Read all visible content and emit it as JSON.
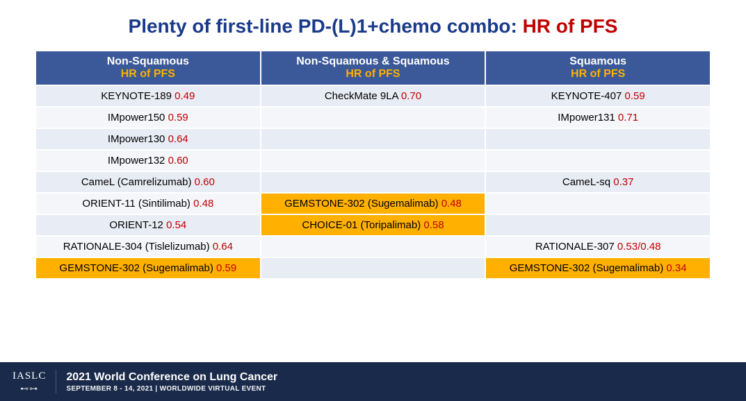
{
  "title": {
    "part1": "Plenty of first-line PD-(L)1+chemo combo: ",
    "part2": "HR of PFS",
    "fontsize": 28
  },
  "colors": {
    "header_bg": "#3b5998",
    "header_text": "#ffffff",
    "header_sub": "#ffb000",
    "row_bg_a": "#e8ecf4",
    "row_bg_b": "#f4f6fa",
    "highlight_bg": "#ffb000",
    "trial_text": "#000000",
    "hr_text": "#c00000",
    "title_main": "#1a3a8a",
    "title_accent": "#c00000",
    "footer_bg": "#1a2a4a",
    "border": "#ffffff"
  },
  "table": {
    "type": "table",
    "cell_fontsize": 15,
    "header_fontsize": 16,
    "columns": [
      {
        "title": "Non-Squamous",
        "sub": "HR of PFS"
      },
      {
        "title": "Non-Squamous & Squamous",
        "sub": "HR of PFS"
      },
      {
        "title": "Squamous",
        "sub": "HR of PFS"
      }
    ],
    "rows": [
      {
        "alt": false,
        "cells": [
          {
            "trial": "KEYNOTE-189",
            "hr": "0.49",
            "highlight": false
          },
          {
            "trial": "CheckMate 9LA",
            "hr": "0.70",
            "highlight": false
          },
          {
            "trial": "KEYNOTE-407",
            "hr": "0.59",
            "highlight": false
          }
        ]
      },
      {
        "alt": true,
        "cells": [
          {
            "trial": "IMpower150",
            "hr": "0.59",
            "highlight": false
          },
          {
            "trial": "",
            "hr": "",
            "highlight": false
          },
          {
            "trial": "IMpower131",
            "hr": "0.71",
            "highlight": false
          }
        ]
      },
      {
        "alt": false,
        "cells": [
          {
            "trial": "IMpower130",
            "hr": "0.64",
            "highlight": false
          },
          {
            "trial": "",
            "hr": "",
            "highlight": false
          },
          {
            "trial": "",
            "hr": "",
            "highlight": false
          }
        ]
      },
      {
        "alt": true,
        "cells": [
          {
            "trial": "IMpower132",
            "hr": "0.60",
            "highlight": false
          },
          {
            "trial": "",
            "hr": "",
            "highlight": false
          },
          {
            "trial": "",
            "hr": "",
            "highlight": false
          }
        ]
      },
      {
        "alt": false,
        "cells": [
          {
            "trial": "CameL (Camrelizumab)",
            "hr": "0.60",
            "highlight": false
          },
          {
            "trial": "",
            "hr": "",
            "highlight": false
          },
          {
            "trial": "CameL-sq",
            "hr": "0.37",
            "highlight": false
          }
        ]
      },
      {
        "alt": true,
        "cells": [
          {
            "trial": "ORIENT-11 (Sintilimab)",
            "hr": "0.48",
            "highlight": false
          },
          {
            "trial": "GEMSTONE-302 (Sugemalimab)",
            "hr": "0.48",
            "highlight": true
          },
          {
            "trial": "",
            "hr": "",
            "highlight": false
          }
        ]
      },
      {
        "alt": false,
        "cells": [
          {
            "trial": "ORIENT-12",
            "hr": "0.54",
            "highlight": false
          },
          {
            "trial": "CHOICE-01 (Toripalimab)",
            "hr": "0.58",
            "highlight": true
          },
          {
            "trial": "",
            "hr": "",
            "highlight": false
          }
        ]
      },
      {
        "alt": true,
        "cells": [
          {
            "trial": "RATIONALE-304 (Tislelizumab)",
            "hr": "0.64",
            "highlight": false
          },
          {
            "trial": "",
            "hr": "",
            "highlight": false
          },
          {
            "trial": "RATIONALE-307",
            "hr": "0.53/0.48",
            "highlight": false
          }
        ]
      },
      {
        "alt": false,
        "cells": [
          {
            "trial": "GEMSTONE-302 (Sugemalimab)",
            "hr": "0.59",
            "highlight": true
          },
          {
            "trial": "",
            "hr": "",
            "highlight": false
          },
          {
            "trial": "GEMSTONE-302 (Sugemalimab)",
            "hr": "0.34",
            "highlight": true
          }
        ]
      }
    ]
  },
  "footer": {
    "org": "IASLC",
    "glyph": "⊷⊶",
    "line1": "2021 World Conference on Lung Cancer",
    "line2": "SEPTEMBER 8 - 14, 2021 | WORLDWIDE VIRTUAL EVENT"
  }
}
